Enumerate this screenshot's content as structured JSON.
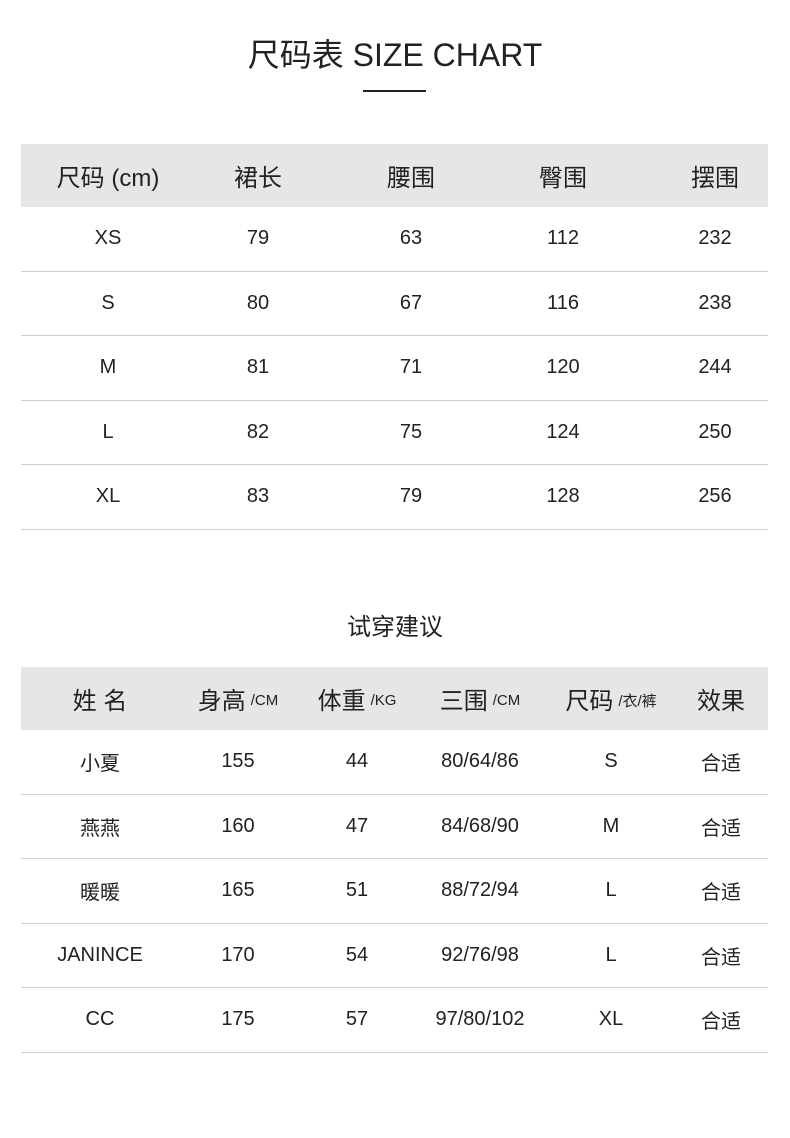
{
  "title": "尺码表 SIZE CHART",
  "size_table": {
    "headers": [
      "尺码 (cm)",
      "裙长",
      "腰围",
      "臀围",
      "摆围"
    ],
    "rows": [
      [
        "XS",
        "79",
        "63",
        "112",
        "232"
      ],
      [
        "S",
        "80",
        "67",
        "116",
        "238"
      ],
      [
        "M",
        "81",
        "71",
        "120",
        "244"
      ],
      [
        "L",
        "82",
        "75",
        "124",
        "250"
      ],
      [
        "XL",
        "83",
        "79",
        "128",
        "256"
      ]
    ]
  },
  "fit_title": "试穿建议",
  "fit_table": {
    "headers": [
      {
        "label": "姓 名",
        "unit": ""
      },
      {
        "label": "身高",
        "unit": "/CM"
      },
      {
        "label": "体重",
        "unit": "/KG"
      },
      {
        "label": "三围",
        "unit": "/CM"
      },
      {
        "label": "尺码",
        "unit": "/衣/裤"
      },
      {
        "label": "效果",
        "unit": ""
      }
    ],
    "rows": [
      [
        "小夏",
        "155",
        "44",
        "80/64/86",
        "S",
        "合适"
      ],
      [
        "燕燕",
        "160",
        "47",
        "84/68/90",
        "M",
        "合适"
      ],
      [
        "暖暖",
        "165",
        "51",
        "88/72/94",
        "L",
        "合适"
      ],
      [
        "JANINCE",
        "170",
        "54",
        "92/76/98",
        "L",
        "合适"
      ],
      [
        "CC",
        "175",
        "57",
        "97/80/102",
        "XL",
        "合适"
      ]
    ]
  }
}
